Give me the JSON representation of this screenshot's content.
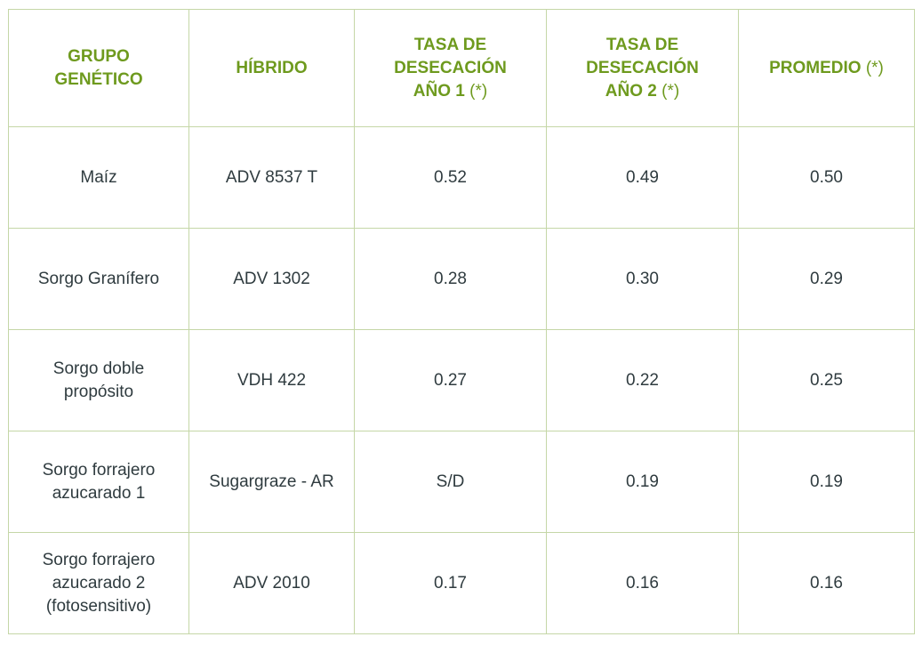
{
  "table": {
    "headers": [
      {
        "label": "GRUPO GENÉTICO",
        "note": ""
      },
      {
        "label": "HÍBRIDO",
        "note": ""
      },
      {
        "label": "TASA DE DESECACIÓN AÑO 1",
        "note": "(*)"
      },
      {
        "label": "TASA DE DESECACIÓN AÑO 2",
        "note": "(*)"
      },
      {
        "label": "PROMEDIO",
        "note": "(*)"
      }
    ],
    "rows": [
      [
        "Maíz",
        "ADV 8537 T",
        "0.52",
        "0.49",
        "0.50"
      ],
      [
        "Sorgo Granífero",
        "ADV 1302",
        "0.28",
        "0.30",
        "0.29"
      ],
      [
        "Sorgo doble propósito",
        "VDH 422",
        "0.27",
        "0.22",
        "0.25"
      ],
      [
        "Sorgo forrajero azucarado 1",
        "Sugargraze - AR",
        "S/D",
        "0.19",
        "0.19"
      ],
      [
        "Sorgo forrajero azucarado 2 (fotosensitivo)",
        "ADV 2010",
        "0.17",
        "0.16",
        "0.16"
      ]
    ]
  },
  "colors": {
    "header_text": "#6e9a1e",
    "body_text": "#2f3b3f",
    "border": "#c5d7a7"
  }
}
